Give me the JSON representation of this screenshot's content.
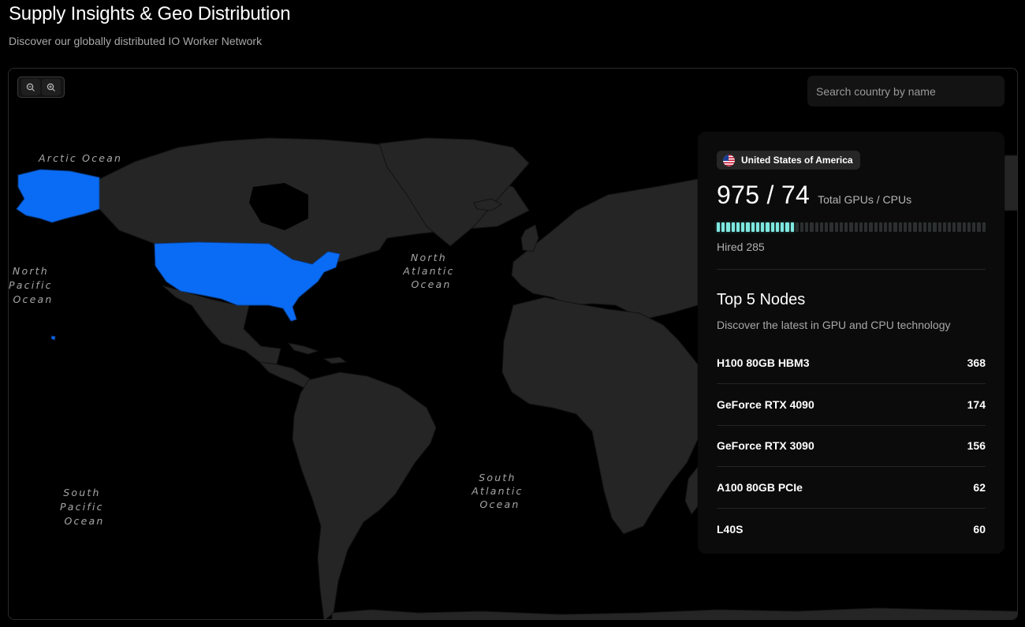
{
  "header": {
    "title": "Supply Insights & Geo Distribution",
    "subtitle": "Discover our globally distributed IO Worker Network"
  },
  "map": {
    "zoom_out_icon": "zoom-out-icon",
    "zoom_in_icon": "zoom-in-icon",
    "search_placeholder": "Search country by name",
    "highlight_color": "#0a6cf5",
    "land_color": "#252525",
    "highlighted_country": "United States of America",
    "ocean_labels": {
      "arctic": "Arctic Ocean",
      "north_pacific": [
        "North",
        "Pacific",
        "Ocean"
      ],
      "north_atlantic": [
        "North",
        "Atlantic",
        "Ocean"
      ],
      "south_pacific": [
        "South",
        "Pacific",
        "Ocean"
      ],
      "south_atlantic": [
        "South",
        "Atlantic",
        "Ocean"
      ]
    }
  },
  "card": {
    "country": "United States of America",
    "flag_icon": "us-flag-icon",
    "total": "975 / 74",
    "total_label": "Total GPUs / CPUs",
    "hired_label": "Hired 285",
    "hired_fraction": 0.292,
    "bar_color": "#7ee8e0",
    "nodes_title": "Top 5 Nodes",
    "nodes_subtitle": "Discover the latest in GPU and CPU technology",
    "nodes": [
      {
        "name": "H100 80GB HBM3",
        "count": "368"
      },
      {
        "name": "GeForce RTX 4090",
        "count": "174"
      },
      {
        "name": "GeForce RTX 3090",
        "count": "156"
      },
      {
        "name": "A100 80GB PCIe",
        "count": "62"
      },
      {
        "name": "L40S",
        "count": "60"
      }
    ]
  }
}
